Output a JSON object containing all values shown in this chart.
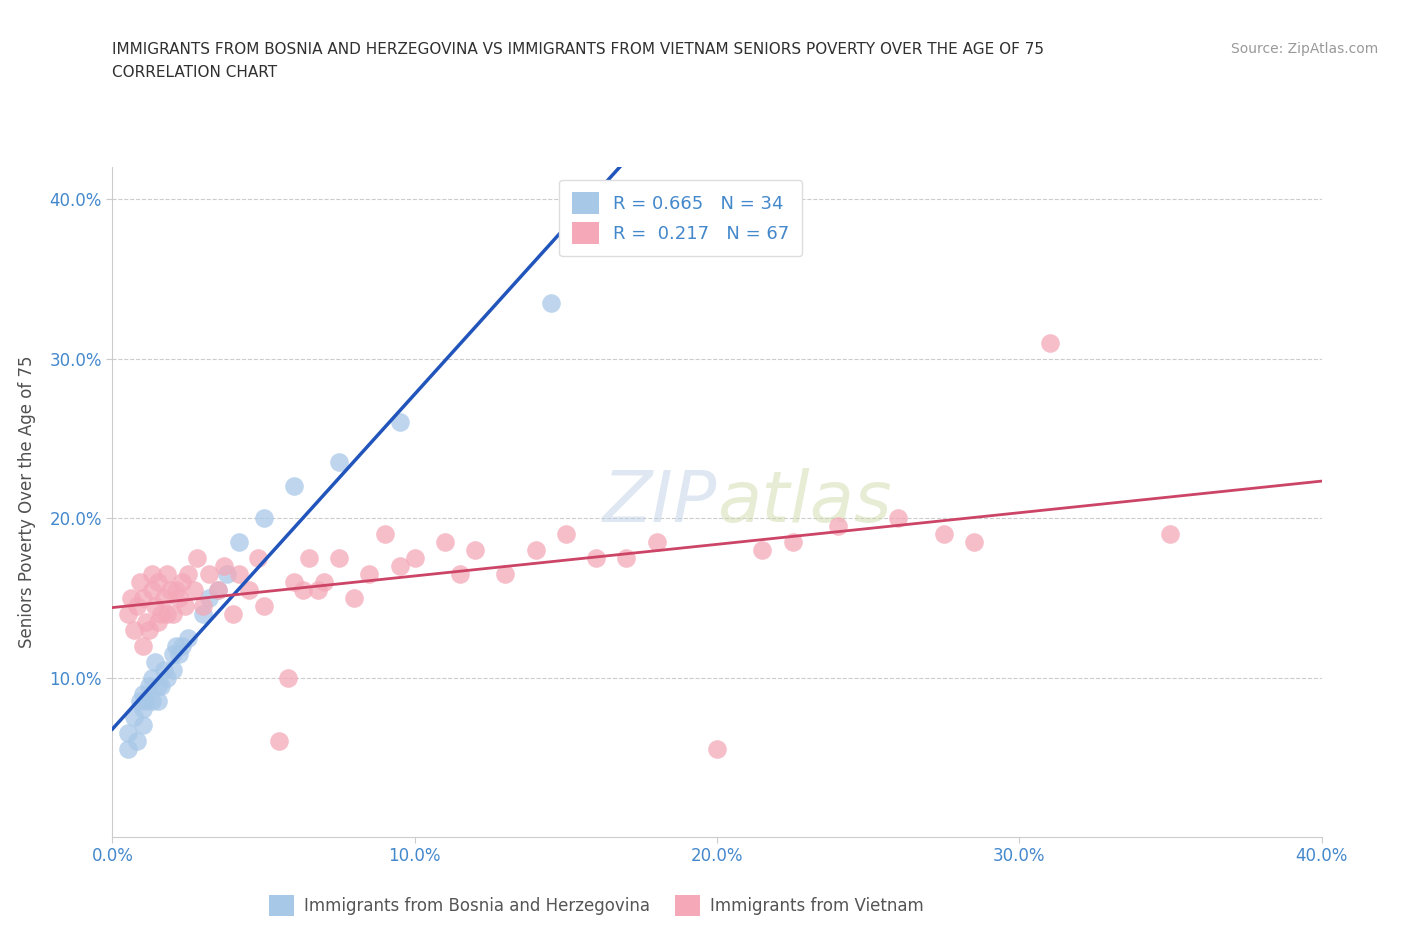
{
  "title_line1": "IMMIGRANTS FROM BOSNIA AND HERZEGOVINA VS IMMIGRANTS FROM VIETNAM SENIORS POVERTY OVER THE AGE OF 75",
  "title_line2": "CORRELATION CHART",
  "source": "Source: ZipAtlas.com",
  "ylabel": "Seniors Poverty Over the Age of 75",
  "xlim": [
    0.0,
    0.4
  ],
  "ylim": [
    0.0,
    0.42
  ],
  "xticks": [
    0.0,
    0.1,
    0.2,
    0.3,
    0.4
  ],
  "yticks": [
    0.1,
    0.2,
    0.3,
    0.4
  ],
  "xticklabels": [
    "0.0%",
    "10.0%",
    "20.0%",
    "30.0%",
    "40.0%"
  ],
  "yticklabels": [
    "10.0%",
    "20.0%",
    "30.0%",
    "40.0%"
  ],
  "r_bosnia": 0.665,
  "n_bosnia": 34,
  "r_vietnam": 0.217,
  "n_vietnam": 67,
  "color_bosnia": "#a8c8e8",
  "color_vietnam": "#f4a8b8",
  "line_color_bosnia": "#2255bb",
  "line_color_vietnam": "#cc4466",
  "bosnia_x": [
    0.005,
    0.005,
    0.007,
    0.008,
    0.009,
    0.01,
    0.01,
    0.01,
    0.011,
    0.012,
    0.013,
    0.013,
    0.014,
    0.015,
    0.015,
    0.016,
    0.017,
    0.018,
    0.02,
    0.02,
    0.021,
    0.022,
    0.023,
    0.025,
    0.03,
    0.032,
    0.035,
    0.038,
    0.042,
    0.05,
    0.06,
    0.075,
    0.095,
    0.145
  ],
  "bosnia_y": [
    0.055,
    0.065,
    0.075,
    0.06,
    0.085,
    0.07,
    0.08,
    0.09,
    0.085,
    0.095,
    0.085,
    0.1,
    0.11,
    0.085,
    0.095,
    0.095,
    0.105,
    0.1,
    0.105,
    0.115,
    0.12,
    0.115,
    0.12,
    0.125,
    0.14,
    0.15,
    0.155,
    0.165,
    0.185,
    0.2,
    0.22,
    0.235,
    0.26,
    0.335
  ],
  "vietnam_x": [
    0.005,
    0.006,
    0.007,
    0.008,
    0.009,
    0.01,
    0.01,
    0.011,
    0.012,
    0.013,
    0.013,
    0.014,
    0.015,
    0.015,
    0.016,
    0.017,
    0.018,
    0.018,
    0.019,
    0.02,
    0.021,
    0.022,
    0.023,
    0.024,
    0.025,
    0.027,
    0.028,
    0.03,
    0.032,
    0.035,
    0.037,
    0.04,
    0.042,
    0.045,
    0.048,
    0.05,
    0.055,
    0.058,
    0.06,
    0.063,
    0.065,
    0.068,
    0.07,
    0.075,
    0.08,
    0.085,
    0.09,
    0.095,
    0.1,
    0.11,
    0.115,
    0.12,
    0.13,
    0.14,
    0.15,
    0.16,
    0.17,
    0.18,
    0.2,
    0.215,
    0.225,
    0.24,
    0.26,
    0.275,
    0.285,
    0.31,
    0.35
  ],
  "vietnam_y": [
    0.14,
    0.15,
    0.13,
    0.145,
    0.16,
    0.12,
    0.15,
    0.135,
    0.13,
    0.155,
    0.165,
    0.145,
    0.135,
    0.16,
    0.14,
    0.15,
    0.14,
    0.165,
    0.155,
    0.14,
    0.155,
    0.15,
    0.16,
    0.145,
    0.165,
    0.155,
    0.175,
    0.145,
    0.165,
    0.155,
    0.17,
    0.14,
    0.165,
    0.155,
    0.175,
    0.145,
    0.06,
    0.1,
    0.16,
    0.155,
    0.175,
    0.155,
    0.16,
    0.175,
    0.15,
    0.165,
    0.19,
    0.17,
    0.175,
    0.185,
    0.165,
    0.18,
    0.165,
    0.18,
    0.19,
    0.175,
    0.175,
    0.185,
    0.055,
    0.18,
    0.185,
    0.195,
    0.2,
    0.19,
    0.185,
    0.31,
    0.19
  ],
  "background_color": "#ffffff",
  "grid_color": "#cccccc",
  "title_color": "#303030",
  "axis_label_color": "#505050",
  "tick_color": "#4488cc"
}
